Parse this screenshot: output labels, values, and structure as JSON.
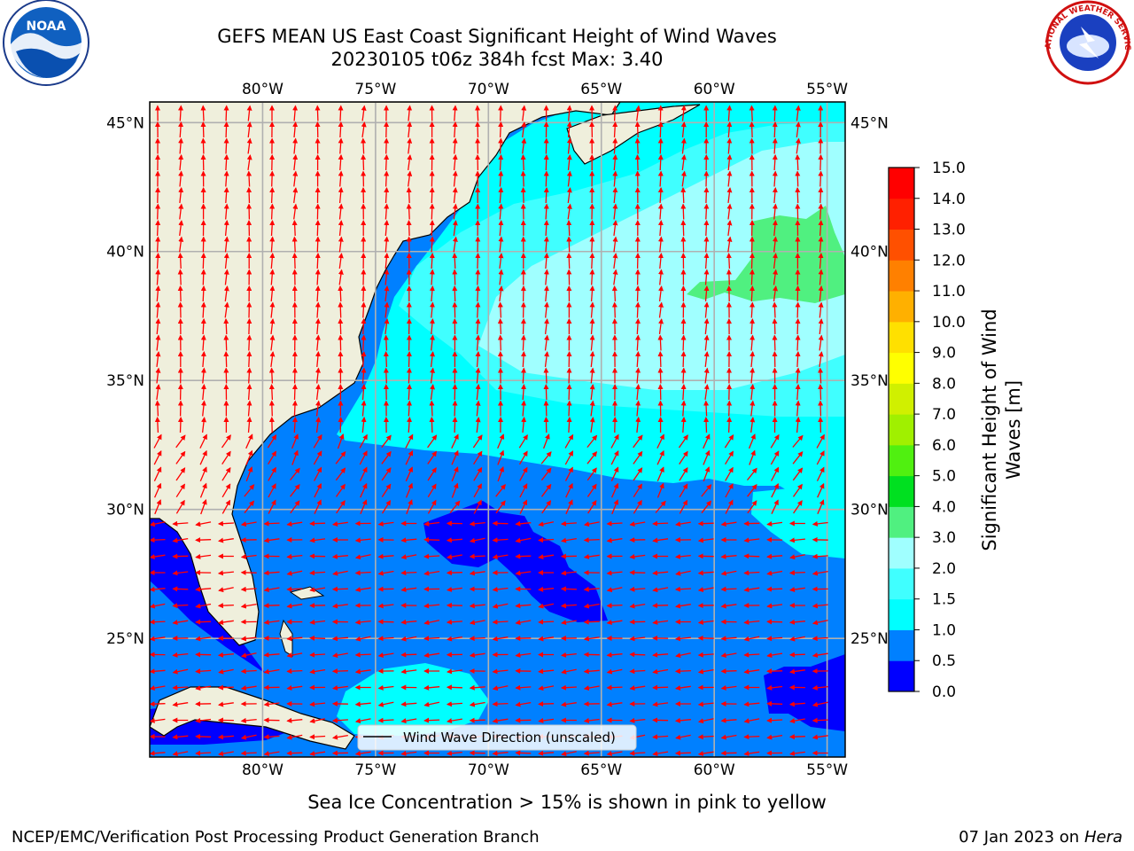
{
  "title": {
    "line1": "GEFS MEAN US East Coast Significant Height of Wind Waves",
    "line2": "20230105 t06z 384h fcst   Max: 3.40"
  },
  "logos": {
    "left": {
      "icon": "noaa-logo",
      "text": "NOAA"
    },
    "right": {
      "icon": "national-weather-service-logo",
      "text": "NATIONAL WEATHER SERVICE"
    }
  },
  "map": {
    "lon_ticks": [
      "80°W",
      "75°W",
      "70°W",
      "65°W",
      "60°W",
      "55°W"
    ],
    "lon_values": [
      -80,
      -75,
      -70,
      -65,
      -60,
      -55
    ],
    "lat_ticks": [
      "45°N",
      "40°N",
      "35°N",
      "30°N",
      "25°N"
    ],
    "lat_values": [
      45,
      40,
      35,
      30,
      25
    ],
    "lon_range": [
      -85,
      -54.2
    ],
    "lat_range": [
      20.4,
      45.8
    ],
    "legend_label": "Wind Wave Direction (unscaled)",
    "colors": {
      "land": "#efefdc",
      "grid": "#b0b0b0",
      "arrow": "#ff0000"
    }
  },
  "colorbar": {
    "label_line1": "Significant Height of Wind",
    "label_line2": "Waves [m]",
    "tick_labels": [
      "0.0",
      "0.5",
      "1.0",
      "1.5",
      "2.0",
      "3.0",
      "4.0",
      "5.0",
      "6.0",
      "7.0",
      "8.0",
      "9.0",
      "10.0",
      "11.0",
      "12.0",
      "13.0",
      "14.0",
      "15.0"
    ],
    "colors": [
      "#0000ff",
      "#0080ff",
      "#00ffff",
      "#40ffff",
      "#a0ffff",
      "#50f080",
      "#00e020",
      "#50f010",
      "#a0f000",
      "#d0f000",
      "#ffff00",
      "#ffe000",
      "#ffb000",
      "#ff8000",
      "#ff5000",
      "#ff2000",
      "#ff0000"
    ]
  },
  "footer": {
    "note": "Sea Ice Concentration > 15% is shown in pink to yellow",
    "credit": "NCEP/EMC/Verification Post Processing Product Generation Branch",
    "date": "07 Jan 2023 on ",
    "machine": "Hera"
  }
}
